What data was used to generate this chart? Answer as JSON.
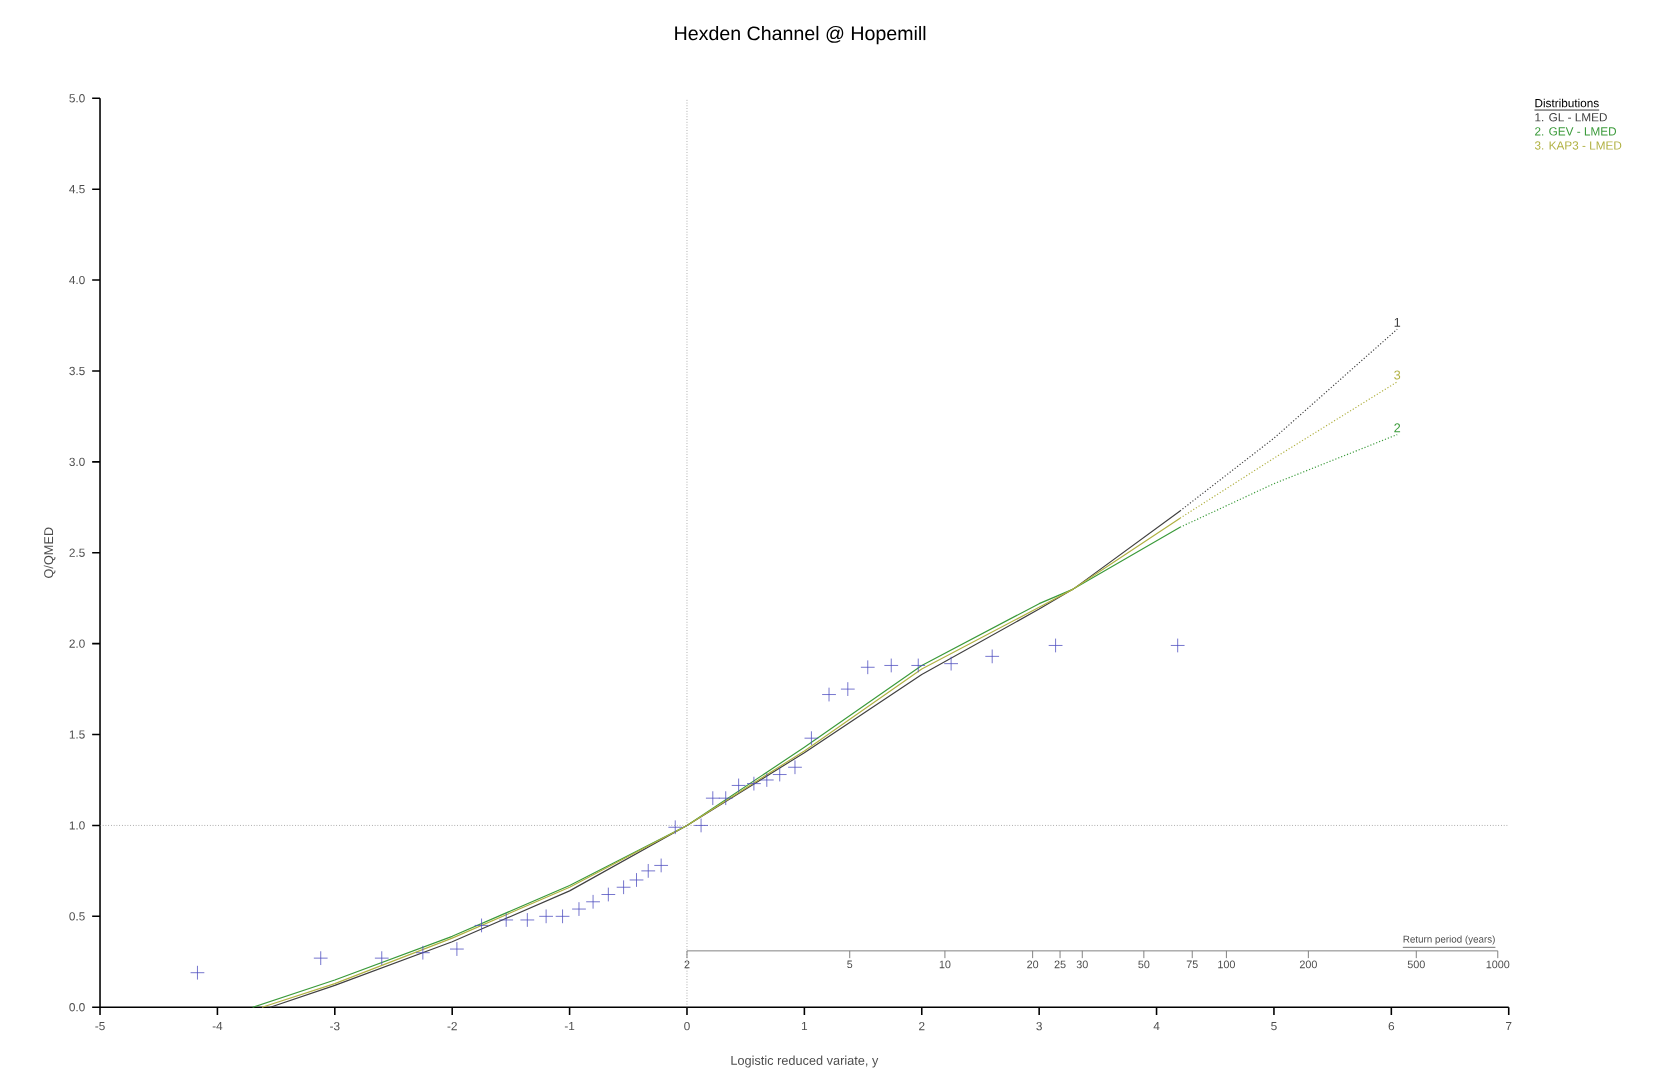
{
  "chart_data": {
    "type": "line",
    "title": "Hexden Channel @ Hopemill",
    "xlabel": "Logistic reduced variate, y",
    "ylabel": "Q/QMED",
    "legend_title": "Distributions",
    "legend": "top right",
    "xlim": [
      -5,
      7
    ],
    "xticks": [
      -5,
      -4,
      -3,
      -2,
      -1,
      0,
      1,
      2,
      3,
      4,
      5,
      6,
      7
    ],
    "ylim": [
      0,
      5
    ],
    "yticks": [
      {
        "value": 0,
        "label": "0.0"
      },
      {
        "value": 0.5,
        "label": "0.5"
      },
      {
        "value": 1,
        "label": "1.0"
      },
      {
        "value": 1.5,
        "label": "1.5"
      },
      {
        "value": 2,
        "label": "2.0"
      },
      {
        "value": 2.5,
        "label": "2.5"
      },
      {
        "value": 3,
        "label": "3.0"
      },
      {
        "value": 3.5,
        "label": "3.5"
      },
      {
        "value": 4,
        "label": "4.0"
      },
      {
        "value": 4.5,
        "label": "4.5"
      },
      {
        "value": 5,
        "label": "5.0"
      }
    ],
    "ref_lines": [
      {
        "axis": "y",
        "value": 1,
        "line_style": "dotted",
        "color": "#808080"
      },
      {
        "axis": "x",
        "value": 0,
        "line_style": "dotted",
        "color": "#808080"
      }
    ],
    "series": [
      {
        "type": "scatter",
        "marker": "cross",
        "color": "#5050c0",
        "x": [
          -4.17,
          -3.12,
          -2.6,
          -2.25,
          -1.96,
          -1.75,
          -1.54,
          -1.36,
          -1.2,
          -1.06,
          -0.92,
          -0.8,
          -0.67,
          -0.54,
          -0.43,
          -0.33,
          -0.22,
          -0.1,
          0.12,
          0.22,
          0.33,
          0.44,
          0.57,
          0.68,
          0.79,
          0.92,
          1.06,
          1.21,
          1.37,
          1.54,
          1.74,
          1.97,
          2.25,
          2.6,
          3.14,
          4.18
        ],
        "values": [
          0.19,
          0.27,
          0.27,
          0.3,
          0.32,
          0.45,
          0.48,
          0.48,
          0.5,
          0.5,
          0.54,
          0.58,
          0.62,
          0.66,
          0.7,
          0.75,
          0.78,
          0.99,
          1.0,
          1.15,
          1.15,
          1.22,
          1.23,
          1.25,
          1.28,
          1.32,
          1.48,
          1.72,
          1.75,
          1.87,
          1.88,
          1.88,
          1.89,
          1.93,
          1.99,
          1.99
        ]
      },
      {
        "name": "1. GL - LMED",
        "color": "#404040",
        "line_style": "solid",
        "x": [
          -3.55,
          -3,
          -2,
          -1,
          0,
          1,
          2,
          3,
          3.29,
          4.2
        ],
        "values": [
          0,
          0.12,
          0.36,
          0.64,
          1.0,
          1.4,
          1.83,
          2.19,
          2.3,
          2.73
        ]
      },
      {
        "name": "2. GEV - LMED",
        "color": "#3a9a3a",
        "line_style": "solid",
        "x": [
          -3.7,
          -3,
          -2,
          -1,
          0,
          1,
          2,
          3,
          3.29,
          4.2
        ],
        "values": [
          0,
          0.15,
          0.39,
          0.67,
          1.0,
          1.43,
          1.88,
          2.22,
          2.3,
          2.64
        ]
      },
      {
        "name": "3. KAP3 - LMED",
        "color": "#b0b040",
        "line_style": "solid",
        "x": [
          -3.62,
          -3,
          -2,
          -1,
          0,
          1,
          2,
          3,
          3.29,
          4.2
        ],
        "values": [
          0,
          0.13,
          0.38,
          0.66,
          1.0,
          1.41,
          1.86,
          2.2,
          2.3,
          2.69
        ]
      },
      {
        "color": "#404040",
        "line_style": "dotted",
        "x": [
          4.2,
          5,
          6.05
        ],
        "values": [
          2.73,
          3.13,
          3.73
        ]
      },
      {
        "color": "#3a9a3a",
        "line_style": "dotted",
        "x": [
          4.2,
          5,
          6.05
        ],
        "values": [
          2.64,
          2.88,
          3.15
        ]
      },
      {
        "color": "#b0b040",
        "line_style": "dotted",
        "x": [
          4.2,
          5,
          6.05
        ],
        "values": [
          2.69,
          3.02,
          3.44
        ]
      }
    ],
    "annotations": [
      "1",
      "2",
      "3",
      "Return period (years)",
      "2",
      "5",
      "10",
      "20",
      "25",
      "30",
      "50",
      "75",
      "100",
      "200",
      "500",
      "1000"
    ]
  }
}
